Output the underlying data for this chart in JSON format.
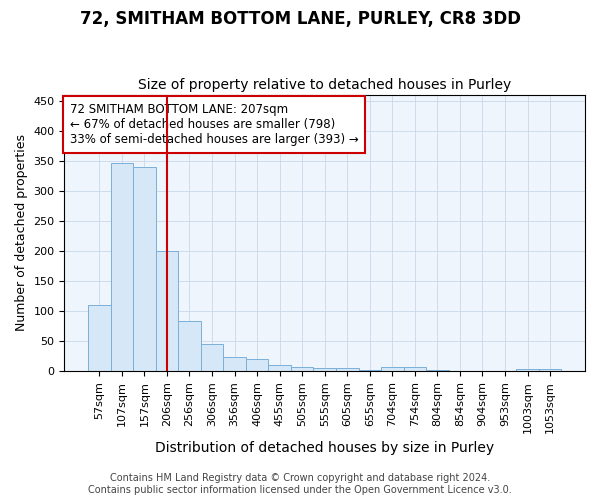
{
  "title": "72, SMITHAM BOTTOM LANE, PURLEY, CR8 3DD",
  "subtitle": "Size of property relative to detached houses in Purley",
  "xlabel": "Distribution of detached houses by size in Purley",
  "ylabel": "Number of detached properties",
  "categories": [
    "57sqm",
    "107sqm",
    "157sqm",
    "206sqm",
    "256sqm",
    "306sqm",
    "356sqm",
    "406sqm",
    "455sqm",
    "505sqm",
    "555sqm",
    "605sqm",
    "655sqm",
    "704sqm",
    "754sqm",
    "804sqm",
    "854sqm",
    "904sqm",
    "953sqm",
    "1003sqm",
    "1053sqm"
  ],
  "values": [
    110,
    347,
    340,
    200,
    83,
    46,
    24,
    21,
    10,
    7,
    6,
    6,
    2,
    7,
    7,
    2,
    0,
    0,
    0,
    4,
    4
  ],
  "bar_color": "#d6e8f7",
  "bar_edge_color": "#7ab0d8",
  "vline_x_index": 3,
  "vline_color": "#cc0000",
  "ylim": [
    0,
    460
  ],
  "yticks": [
    0,
    50,
    100,
    150,
    200,
    250,
    300,
    350,
    400,
    450
  ],
  "annotation_line1": "72 SMITHAM BOTTOM LANE: 207sqm",
  "annotation_line2": "← 67% of detached houses are smaller (798)",
  "annotation_line3": "33% of semi-detached houses are larger (393) →",
  "annotation_box_facecolor": "#ffffff",
  "annotation_box_edgecolor": "#cc0000",
  "bg_color": "#ffffff",
  "plot_bg_color": "#eef5fc",
  "grid_color": "#c8d8e8",
  "title_fontsize": 12,
  "subtitle_fontsize": 10,
  "xlabel_fontsize": 10,
  "ylabel_fontsize": 9,
  "tick_fontsize": 8,
  "annotation_fontsize": 8.5,
  "footnote_fontsize": 7,
  "footnote": "Contains HM Land Registry data © Crown copyright and database right 2024.\nContains public sector information licensed under the Open Government Licence v3.0."
}
